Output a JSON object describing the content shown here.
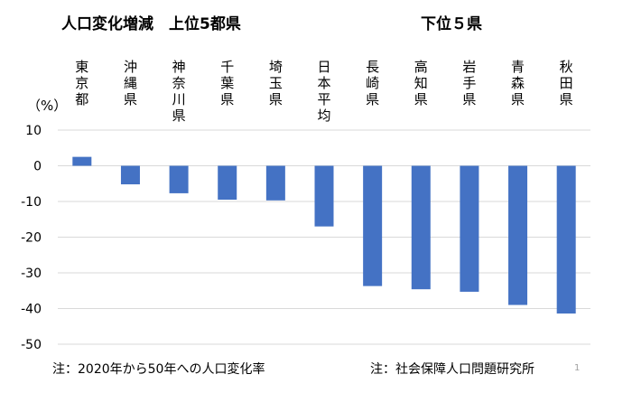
{
  "header": {
    "title_left": "人口変化増減　上位5都県",
    "title_right": "下位５県",
    "unit": "（%）"
  },
  "footer": {
    "note_left": "注：2020年から50年への人口変化率",
    "note_right": "注：社会保障人口問題研究所",
    "page_number": "1"
  },
  "chart_data": {
    "type": "bar",
    "categories": [
      "東京都",
      "沖縄県",
      "神奈川県",
      "千葉県",
      "埼玉県",
      "日本平均",
      "長崎県",
      "高知県",
      "岩手県",
      "青森県",
      "秋田県"
    ],
    "values": [
      2.5,
      -5.2,
      -7.7,
      -9.5,
      -9.7,
      -17.0,
      -33.7,
      -34.6,
      -35.3,
      -39.0,
      -41.4
    ],
    "yticks": [
      10,
      0,
      -10,
      -20,
      -30,
      -40,
      -50
    ],
    "ylim": [
      -50,
      10
    ],
    "bar_color": "#4472C4",
    "grid": true,
    "grid_color": "#d9d9d9",
    "xlabel": "",
    "ylabel": "（%）"
  }
}
